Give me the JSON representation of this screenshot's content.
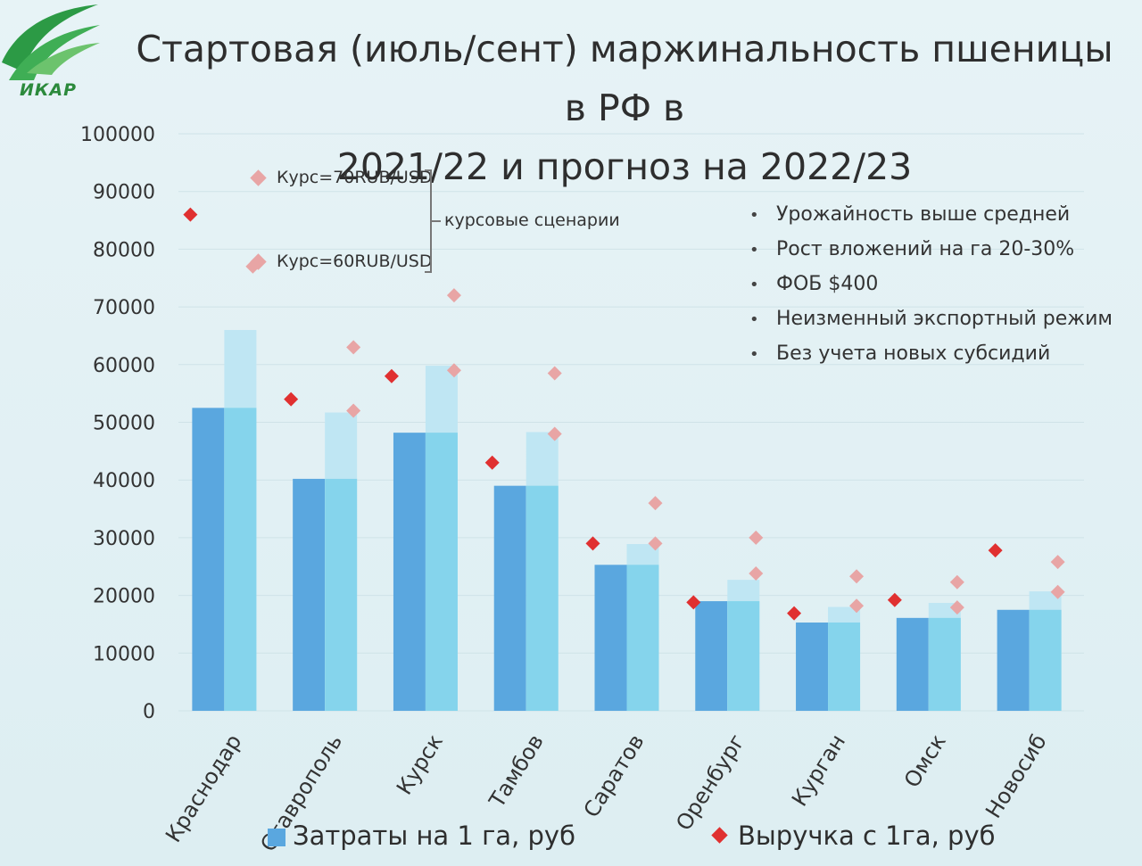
{
  "title_line1": "Стартовая (июль/сент) маржинальность пшеницы в РФ в",
  "title_line2": "2021/22 и прогноз на 2022/23",
  "logo_text": "ИКАР",
  "scenarios": {
    "high": "Курс=70RUB/USD",
    "low": "Курс=60RUB/USD",
    "label": "курсовые сценарии"
  },
  "bullets": [
    "Урожайность выше средней",
    "Рост вложений на га 20-30%",
    "ФОБ $400",
    "Неизменный экспортный режим",
    "Без учета новых субсидий"
  ],
  "legend": {
    "costs": "Затраты на 1 га, руб",
    "revenue": "Выручка с 1га, руб"
  },
  "colors": {
    "cost_2021": "#5aa7df",
    "cost_2022_base": "#85d4ec",
    "cost_2022_top": "#bfe6f3",
    "revenue_2021": "#e03030",
    "revenue_forecast": "#e8a5a5"
  },
  "chart_data": {
    "type": "bar",
    "categories": [
      "Краснодар",
      "Ставрополь",
      "Курск",
      "Тамбов",
      "Саратов",
      "Оренбург",
      "Курган",
      "Омск",
      "Новосиб"
    ],
    "ylim": [
      0,
      100000
    ],
    "yticks": [
      0,
      10000,
      20000,
      30000,
      40000,
      50000,
      60000,
      70000,
      80000,
      90000,
      100000
    ],
    "series": [
      {
        "name": "Затраты на 1 га, руб",
        "values": [
          52500,
          40200,
          48200,
          39000,
          25300,
          19000,
          15300,
          16100,
          17500
        ]
      },
      {
        "values": [
          66000,
          51700,
          59800,
          48300,
          28900,
          22700,
          18000,
          18700,
          20700
        ]
      },
      {
        "name": "Выручка с 1га, руб",
        "values": [
          86000,
          54000,
          58000,
          43000,
          29000,
          18800,
          16900,
          19200,
          27800
        ]
      },
      {
        "name": "Курс=70RUB/USD",
        "values": [
          null,
          63000,
          72000,
          58500,
          36000,
          30000,
          23300,
          22300,
          25800
        ]
      },
      {
        "name": "Курс=60RUB/USD",
        "values": [
          77000,
          52000,
          59000,
          48000,
          29000,
          23800,
          18200,
          17900,
          20600
        ]
      }
    ]
  }
}
